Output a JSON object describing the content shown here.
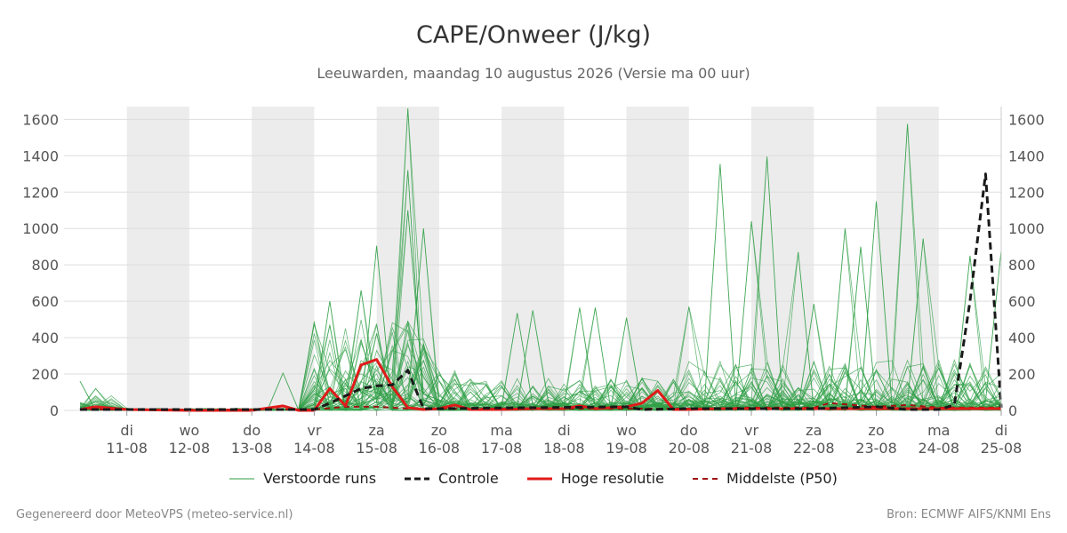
{
  "title": "CAPE/Onweer (J/kg)",
  "subtitle": "Leeuwarden, maandag 10 augustus 2026 (Versie ma 00 uur)",
  "footer_left": "Gegenereerd door MeteoVPS (meteo-service.nl)",
  "footer_right": "Bron: ECMWF AIFS/KNMI Ens",
  "colors": {
    "ensemble": "#2e9e44",
    "control": "#1a1a1a",
    "highres": "#e11a1a",
    "median": "#a01010",
    "weekend_band": "#ececec",
    "grid": "#dddddd"
  },
  "legend": [
    {
      "label": "Verstoorde runs",
      "style": "thin-green"
    },
    {
      "label": "Controle",
      "style": "black-dashed"
    },
    {
      "label": "Hoge resolutie",
      "style": "red-solid"
    },
    {
      "label": "Middelste (P50)",
      "style": "darkred-dashed"
    }
  ],
  "chart_data": {
    "type": "line",
    "title": "CAPE/Onweer (J/kg)",
    "subtitle": "Leeuwarden, maandag 10 augustus 2026 (Versie ma 00 uur)",
    "x_unit": "day index (0 = ma 10-08 00u)",
    "xlim": [
      -0.75,
      14.0
    ],
    "ylim": [
      0,
      1670
    ],
    "y_ticks": [
      0,
      200,
      400,
      600,
      800,
      1000,
      1200,
      1400,
      1600
    ],
    "grid": true,
    "legend_position": "bottom",
    "x_tick_labels": [
      {
        "day": "di",
        "date": "11-08"
      },
      {
        "day": "wo",
        "date": "12-08"
      },
      {
        "day": "do",
        "date": "13-08"
      },
      {
        "day": "vr",
        "date": "14-08"
      },
      {
        "day": "za",
        "date": "15-08"
      },
      {
        "day": "zo",
        "date": "16-08"
      },
      {
        "day": "ma",
        "date": "17-08"
      },
      {
        "day": "di",
        "date": "18-08"
      },
      {
        "day": "wo",
        "date": "19-08"
      },
      {
        "day": "do",
        "date": "20-08"
      },
      {
        "day": "vr",
        "date": "21-08"
      },
      {
        "day": "za",
        "date": "22-08"
      },
      {
        "day": "zo",
        "date": "23-08"
      },
      {
        "day": "ma",
        "date": "24-08"
      },
      {
        "day": "di",
        "date": "25-08"
      }
    ],
    "weekend_bands": [
      [
        0,
        1
      ],
      [
        2,
        3
      ],
      [
        4,
        5
      ],
      [
        6,
        7
      ],
      [
        8,
        9
      ],
      [
        10,
        11
      ],
      [
        12,
        13
      ]
    ],
    "ensemble_peaks": [
      {
        "x": -0.75,
        "y": 160
      },
      {
        "x": -0.5,
        "y": 120
      },
      {
        "x": 2.5,
        "y": 205
      },
      {
        "x": 3.25,
        "y": 600
      },
      {
        "x": 3.75,
        "y": 660
      },
      {
        "x": 4.0,
        "y": 905
      },
      {
        "x": 4.5,
        "y": 1660
      },
      {
        "x": 4.5,
        "y": 1320
      },
      {
        "x": 4.5,
        "y": 1100
      },
      {
        "x": 4.75,
        "y": 1000
      },
      {
        "x": 6.25,
        "y": 535
      },
      {
        "x": 6.5,
        "y": 550
      },
      {
        "x": 7.25,
        "y": 565
      },
      {
        "x": 7.5,
        "y": 565
      },
      {
        "x": 8.0,
        "y": 510
      },
      {
        "x": 9.0,
        "y": 570
      },
      {
        "x": 9.5,
        "y": 1355
      },
      {
        "x": 10.0,
        "y": 1040
      },
      {
        "x": 10.25,
        "y": 1395
      },
      {
        "x": 10.75,
        "y": 870
      },
      {
        "x": 11.0,
        "y": 585
      },
      {
        "x": 11.5,
        "y": 1000
      },
      {
        "x": 11.75,
        "y": 900
      },
      {
        "x": 12.0,
        "y": 1150
      },
      {
        "x": 12.5,
        "y": 1575
      },
      {
        "x": 12.75,
        "y": 945
      },
      {
        "x": 13.5,
        "y": 850
      },
      {
        "x": 14.0,
        "y": 880
      }
    ],
    "series": [
      {
        "name": "Controle",
        "x": [
          -0.75,
          3.0,
          3.25,
          3.5,
          3.75,
          4.0,
          4.25,
          4.5,
          4.75,
          5.0,
          8.0,
          8.25,
          9.0,
          10.0,
          11.0,
          12.0,
          12.5,
          13.0,
          13.25,
          13.5,
          13.75,
          14.0
        ],
        "y": [
          5,
          5,
          40,
          80,
          120,
          135,
          140,
          220,
          10,
          10,
          20,
          5,
          10,
          10,
          10,
          20,
          5,
          5,
          30,
          600,
          1300,
          15
        ]
      },
      {
        "name": "Hoge resolutie",
        "x": [
          -0.75,
          -0.5,
          0.0,
          1.0,
          2.0,
          2.5,
          2.75,
          3.0,
          3.25,
          3.5,
          3.75,
          4.0,
          4.25,
          4.5,
          4.75,
          5.0,
          5.25,
          5.5,
          6.0,
          6.5,
          7.0,
          7.25,
          7.5,
          8.0,
          8.25,
          8.5,
          8.75,
          9.0,
          9.5,
          10.0,
          14.0
        ],
        "y": [
          5,
          20,
          5,
          0,
          0,
          25,
          0,
          0,
          120,
          25,
          250,
          280,
          130,
          15,
          5,
          10,
          30,
          5,
          5,
          10,
          10,
          25,
          10,
          20,
          40,
          110,
          5,
          5,
          10,
          10,
          10
        ]
      },
      {
        "name": "Middelste (P50)",
        "x": [
          -0.75,
          3.0,
          3.5,
          4.0,
          4.25,
          4.5,
          4.75,
          5.0,
          7.0,
          9.0,
          10.0,
          11.0,
          11.25,
          12.0,
          12.5,
          13.0,
          14.0
        ],
        "y": [
          5,
          5,
          20,
          20,
          15,
          10,
          8,
          10,
          10,
          10,
          15,
          15,
          40,
          20,
          30,
          15,
          15
        ]
      }
    ]
  }
}
